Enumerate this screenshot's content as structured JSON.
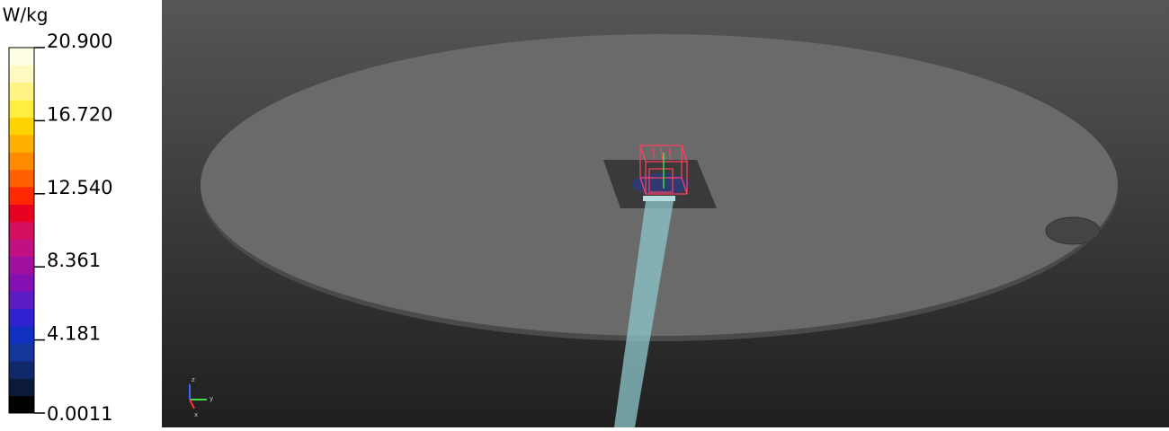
{
  "colorbar": {
    "unit": "W/kg",
    "labels": [
      "20.900",
      "16.720",
      "12.540",
      "8.361",
      "4.181",
      "0.0011"
    ],
    "colors": [
      "#000000",
      "#0b1a3a",
      "#10286a",
      "#14369a",
      "#1030c0",
      "#3022d0",
      "#5c1cc4",
      "#8410b4",
      "#a010a0",
      "#c01084",
      "#d41060",
      "#e80020",
      "#ff2800",
      "#ff6000",
      "#ff8c00",
      "#ffb000",
      "#ffd400",
      "#ffee40",
      "#fff384",
      "#fff8c0",
      "#ffffe4"
    ]
  },
  "axes_triad": {
    "z": "z",
    "y": "y",
    "x": "x"
  }
}
